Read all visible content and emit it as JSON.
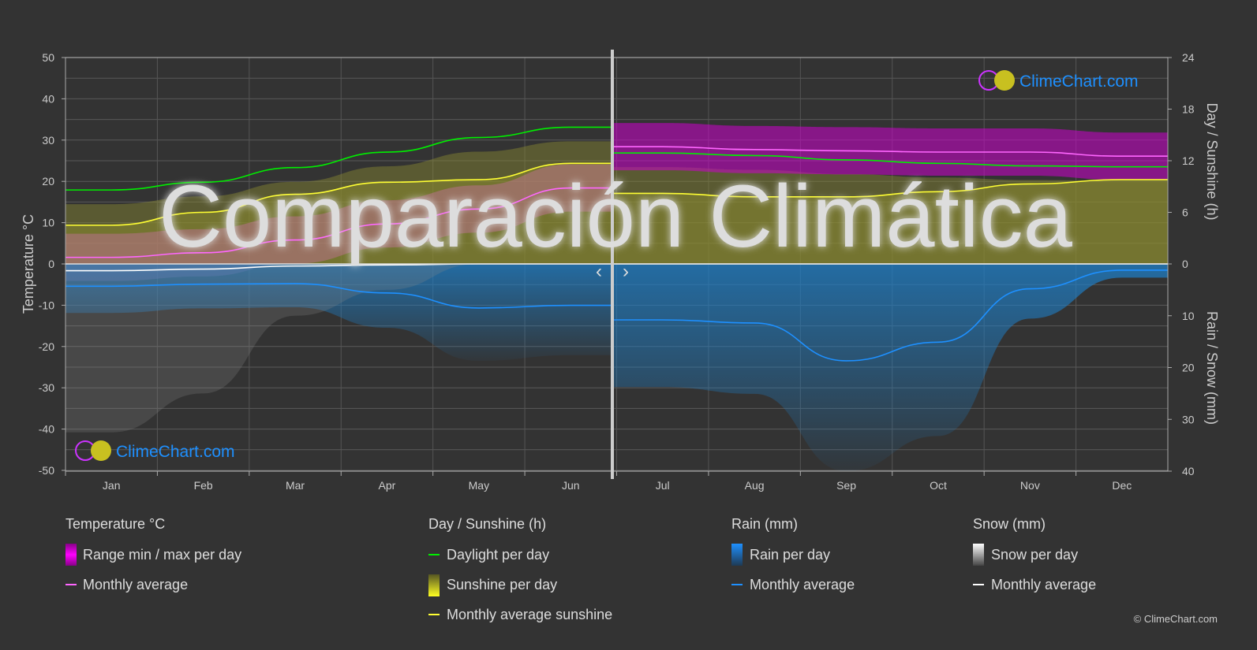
{
  "chart_data": {
    "type": "line",
    "title": "Comparación Climática",
    "categories": [
      "Jan",
      "Feb",
      "Mar",
      "Apr",
      "May",
      "Jun",
      "Jul",
      "Aug",
      "Sep",
      "Oct",
      "Nov",
      "Dec"
    ],
    "comparison_split": "Jan–Jun: left location · Jul–Dec: right location",
    "left_axis": {
      "label": "Temperature °C",
      "range": [
        -50,
        50
      ],
      "ticks": [
        50,
        40,
        30,
        20,
        10,
        0,
        -10,
        -20,
        -30,
        -40,
        -50
      ]
    },
    "right_axis_top": {
      "label": "Day / Sunshine (h)",
      "range": [
        0,
        24
      ],
      "ticks": [
        24,
        18,
        12,
        6,
        0
      ]
    },
    "right_axis_bottom": {
      "label": "Rain / Snow (mm)",
      "range": [
        0,
        40
      ],
      "ticks": [
        0,
        10,
        20,
        30,
        40
      ]
    },
    "grid": true,
    "series": [
      {
        "name": "Monthly average",
        "group": "Temperature °C",
        "axis": "temperature",
        "color": "#ff66ff",
        "values": [
          1.6,
          2.7,
          5.8,
          9.7,
          13.3,
          18.4,
          28.4,
          27.7,
          27.4,
          27.1,
          27.1,
          26.1
        ]
      },
      {
        "name": "Daylight per day",
        "group": "Day / Sunshine (h)",
        "axis": "hours",
        "color": "#00ee00",
        "values": [
          8.6,
          9.5,
          11.2,
          13.0,
          14.7,
          15.9,
          12.9,
          12.6,
          12.1,
          11.7,
          11.4,
          11.3
        ]
      },
      {
        "name": "Monthly average sunshine",
        "group": "Day / Sunshine (h)",
        "axis": "hours",
        "color": "#ffff33",
        "values": [
          4.5,
          6.0,
          8.1,
          9.5,
          9.8,
          11.7,
          8.2,
          7.8,
          7.8,
          8.4,
          9.3,
          9.8
        ]
      },
      {
        "name": "Monthly average",
        "group": "Rain (mm)",
        "axis": "rain",
        "color": "#1e90ff",
        "values": [
          4.3,
          3.9,
          3.8,
          5.6,
          8.5,
          8.0,
          10.8,
          11.4,
          18.7,
          15.1,
          4.8,
          1.2
        ]
      },
      {
        "name": "Monthly average",
        "group": "Snow (mm)",
        "axis": "rain",
        "color": "#ffffff",
        "values": [
          1.3,
          1.0,
          0.4,
          0.2,
          0.0,
          0.0,
          0,
          0,
          0,
          0,
          0,
          0
        ]
      }
    ]
  },
  "legend": {
    "temperature": {
      "title": "Temperature °C",
      "items": [
        "Range min / max per day",
        "Monthly average"
      ]
    },
    "sunshine": {
      "title": "Day / Sunshine (h)",
      "items": [
        "Daylight per day",
        "Sunshine per day",
        "Monthly average sunshine"
      ]
    },
    "rain": {
      "title": "Rain (mm)",
      "items": [
        "Rain per day",
        "Monthly average"
      ]
    },
    "snow": {
      "title": "Snow (mm)",
      "items": [
        "Snow per day",
        "Monthly average"
      ]
    }
  },
  "slider": {
    "left_arrow": "‹",
    "right_arrow": "›"
  },
  "brand": {
    "logo_text": "ClimeChart.com",
    "copyright": "© ClimeChart.com"
  },
  "colors": {
    "background": "#333333",
    "range": "#ee00ee",
    "sunshine": "#c8c832",
    "rain": "#1e7fc8",
    "snow": "#aaaaaa"
  }
}
